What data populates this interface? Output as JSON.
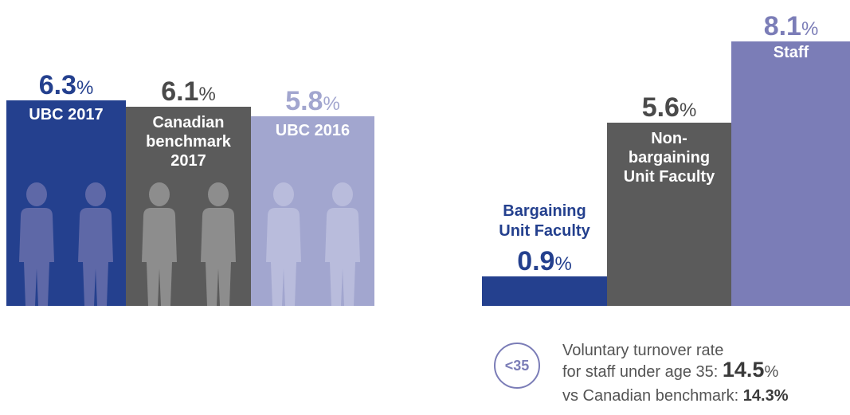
{
  "colors": {
    "ubc_2017": "#24408e",
    "canadian": "#5b5b5b",
    "ubc_2016": "#a2a6cf",
    "bargaining": "#24408e",
    "non_bargaining": "#5b5b5b",
    "staff": "#7b7db7",
    "figure_ubc_2017": "#5e68a7",
    "figure_canadian": "#8d8d8d",
    "figure_ubc_2016": "#b9bcdc"
  },
  "chart_data": [
    {
      "type": "bar",
      "categories": [
        "UBC 2017",
        "Canadian benchmark 2017",
        "UBC 2016"
      ],
      "values": [
        6.3,
        6.1,
        5.8
      ],
      "value_labels": [
        {
          "num": "6.3",
          "pct": "%"
        },
        {
          "num": "6.1",
          "pct": "%"
        },
        {
          "num": "5.8",
          "pct": "%"
        }
      ],
      "label_lines": [
        [
          "UBC 2017"
        ],
        [
          "Canadian",
          "benchmark",
          "2017"
        ],
        [
          "UBC 2016"
        ]
      ],
      "unit": "%"
    },
    {
      "type": "bar",
      "categories": [
        "Bargaining Unit Faculty",
        "Non-bargaining Unit Faculty",
        "Staff"
      ],
      "values": [
        0.9,
        5.6,
        8.1
      ],
      "value_labels": [
        {
          "num": "0.9",
          "pct": "%"
        },
        {
          "num": "5.6",
          "pct": "%"
        },
        {
          "num": "8.1",
          "pct": "%"
        }
      ],
      "label_lines": [
        [
          "Bargaining",
          "Unit Faculty"
        ],
        [
          "Non-",
          "bargaining",
          "Unit Faculty"
        ],
        [
          "Staff"
        ]
      ],
      "unit": "%"
    }
  ],
  "young_staff": {
    "badge": "<35",
    "line1": "Voluntary turnover rate",
    "line2_prefix": "for staff under age 35: ",
    "line2_value": "14.5",
    "line2_pct": "%",
    "line3_prefix": "vs Canadian benchmark: ",
    "line3_value": "14.3%"
  }
}
